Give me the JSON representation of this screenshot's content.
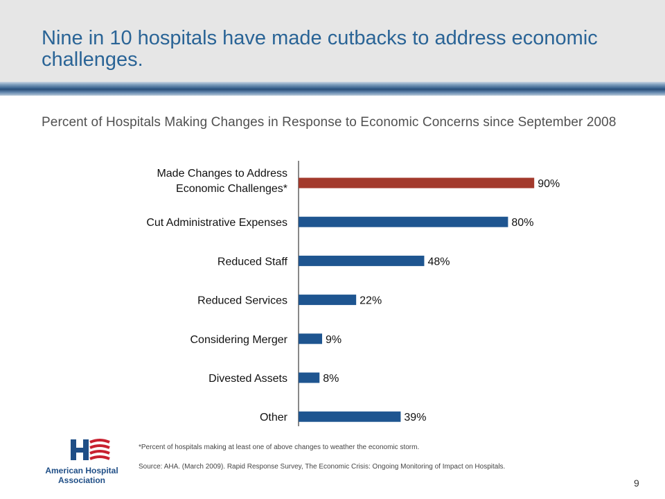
{
  "slide": {
    "title": "Nine in 10 hospitals have made cutbacks to address economic challenges.",
    "subtitle": "Percent of Hospitals Making Changes in Response to Economic Concerns since September 2008",
    "footnote": "*Percent of hospitals making at least one of above changes to weather the economic storm.",
    "source": "Source:  AHA. (March 2009). Rapid Response Survey, The Economic Crisis:  Ongoing Monitoring of Impact on Hospitals.",
    "page_number": "9",
    "logo_text_line1": "American Hospital",
    "logo_text_line2": "Association"
  },
  "colors": {
    "title": "#2a6496",
    "highlight_bar": "#a33a2c",
    "bar": "#1e5590",
    "logo_red": "#c8202f",
    "logo_blue": "#1f4e86"
  },
  "chart_data": {
    "type": "bar",
    "orientation": "horizontal",
    "categories": [
      [
        "Made Changes to Address",
        "Economic Challenges*"
      ],
      [
        "Cut Administrative Expenses"
      ],
      [
        "Reduced Staff"
      ],
      [
        "Reduced Services"
      ],
      [
        "Considering Merger"
      ],
      [
        "Divested Assets"
      ],
      [
        "Other"
      ]
    ],
    "values": [
      90,
      80,
      48,
      22,
      9,
      8,
      39
    ],
    "value_labels": [
      "90%",
      "80%",
      "48%",
      "22%",
      "9%",
      "8%",
      "39%"
    ],
    "highlight_index": 0,
    "xlim": [
      0,
      100
    ],
    "grid": false,
    "legend": "none"
  }
}
